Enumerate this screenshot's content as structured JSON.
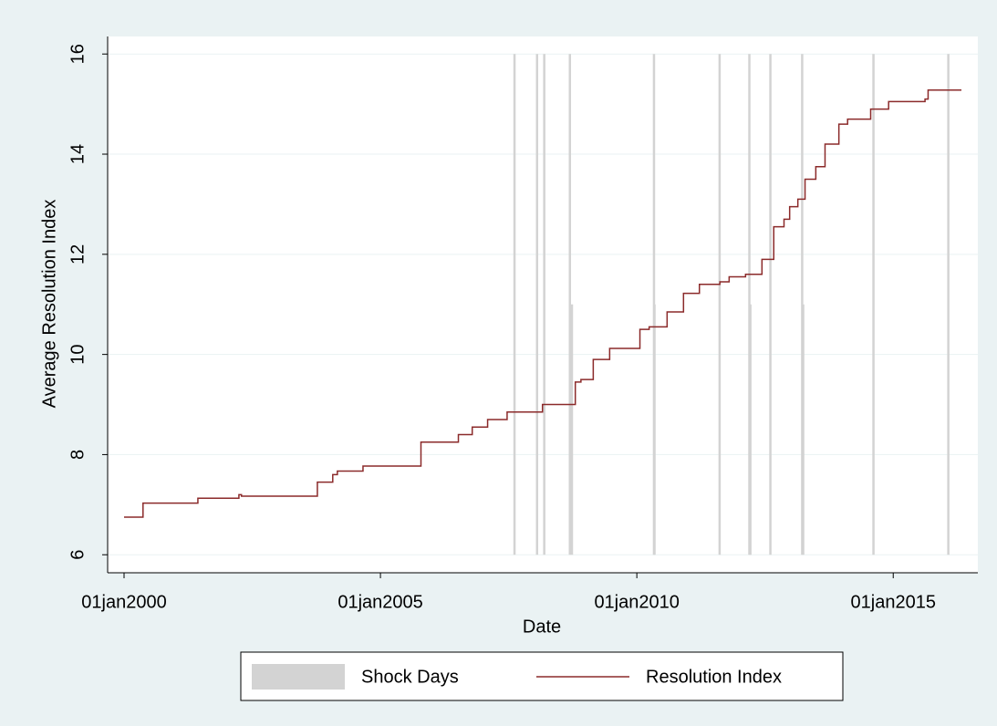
{
  "chart_data": {
    "type": "line",
    "x_label": "Date",
    "y_label": "Average Resolution Index",
    "xlim": [
      1999.68,
      2016.65
    ],
    "ylim": [
      5.64,
      16.35
    ],
    "xticks": [
      {
        "value": 2000,
        "label": "01jan2000"
      },
      {
        "value": 2005,
        "label": "01jan2005"
      },
      {
        "value": 2010,
        "label": "01jan2010"
      },
      {
        "value": 2015,
        "label": "01jan2015"
      }
    ],
    "yticks": [
      6,
      8,
      10,
      12,
      14,
      16
    ],
    "grid": true,
    "step": true,
    "series": [
      {
        "name": "Shock Days",
        "type": "bar",
        "color": "#d3d3d3",
        "x": [
          2007.61,
          2008.05,
          2008.19,
          2008.69,
          2008.73,
          2010.33,
          2010.34,
          2011.61,
          2012.19,
          2012.21,
          2012.6,
          2013.22,
          2013.24,
          2014.61,
          2016.07
        ],
        "values": [
          16,
          16,
          16,
          16,
          11,
          16,
          11,
          16,
          16,
          11,
          16,
          16,
          11,
          16,
          16
        ]
      },
      {
        "name": "Resolution Index",
        "type": "line",
        "color": "#8b2a2a",
        "x": [
          2000.0,
          2000.37,
          2001.44,
          2002.24,
          2002.29,
          2003.77,
          2004.07,
          2004.16,
          2004.66,
          2005.79,
          2006.52,
          2006.79,
          2007.09,
          2007.47,
          2008.16,
          2008.8,
          2008.91,
          2009.15,
          2009.47,
          2010.06,
          2010.24,
          2010.59,
          2010.91,
          2011.22,
          2011.62,
          2011.8,
          2012.12,
          2012.44,
          2012.67,
          2012.87,
          2012.98,
          2013.14,
          2013.28,
          2013.49,
          2013.67,
          2013.94,
          2014.11,
          2014.56,
          2014.91,
          2015.62,
          2015.68,
          2016.33
        ],
        "values": [
          6.75,
          7.03,
          7.13,
          7.2,
          7.17,
          7.45,
          7.6,
          7.67,
          7.77,
          8.25,
          8.4,
          8.55,
          8.7,
          8.85,
          9.0,
          9.45,
          9.5,
          9.9,
          10.12,
          10.5,
          10.55,
          10.85,
          11.22,
          11.4,
          11.45,
          11.55,
          11.6,
          11.9,
          12.55,
          12.7,
          12.95,
          13.1,
          13.5,
          13.75,
          14.2,
          14.6,
          14.7,
          14.9,
          15.05,
          15.1,
          15.28,
          15.28
        ]
      }
    ]
  }
}
